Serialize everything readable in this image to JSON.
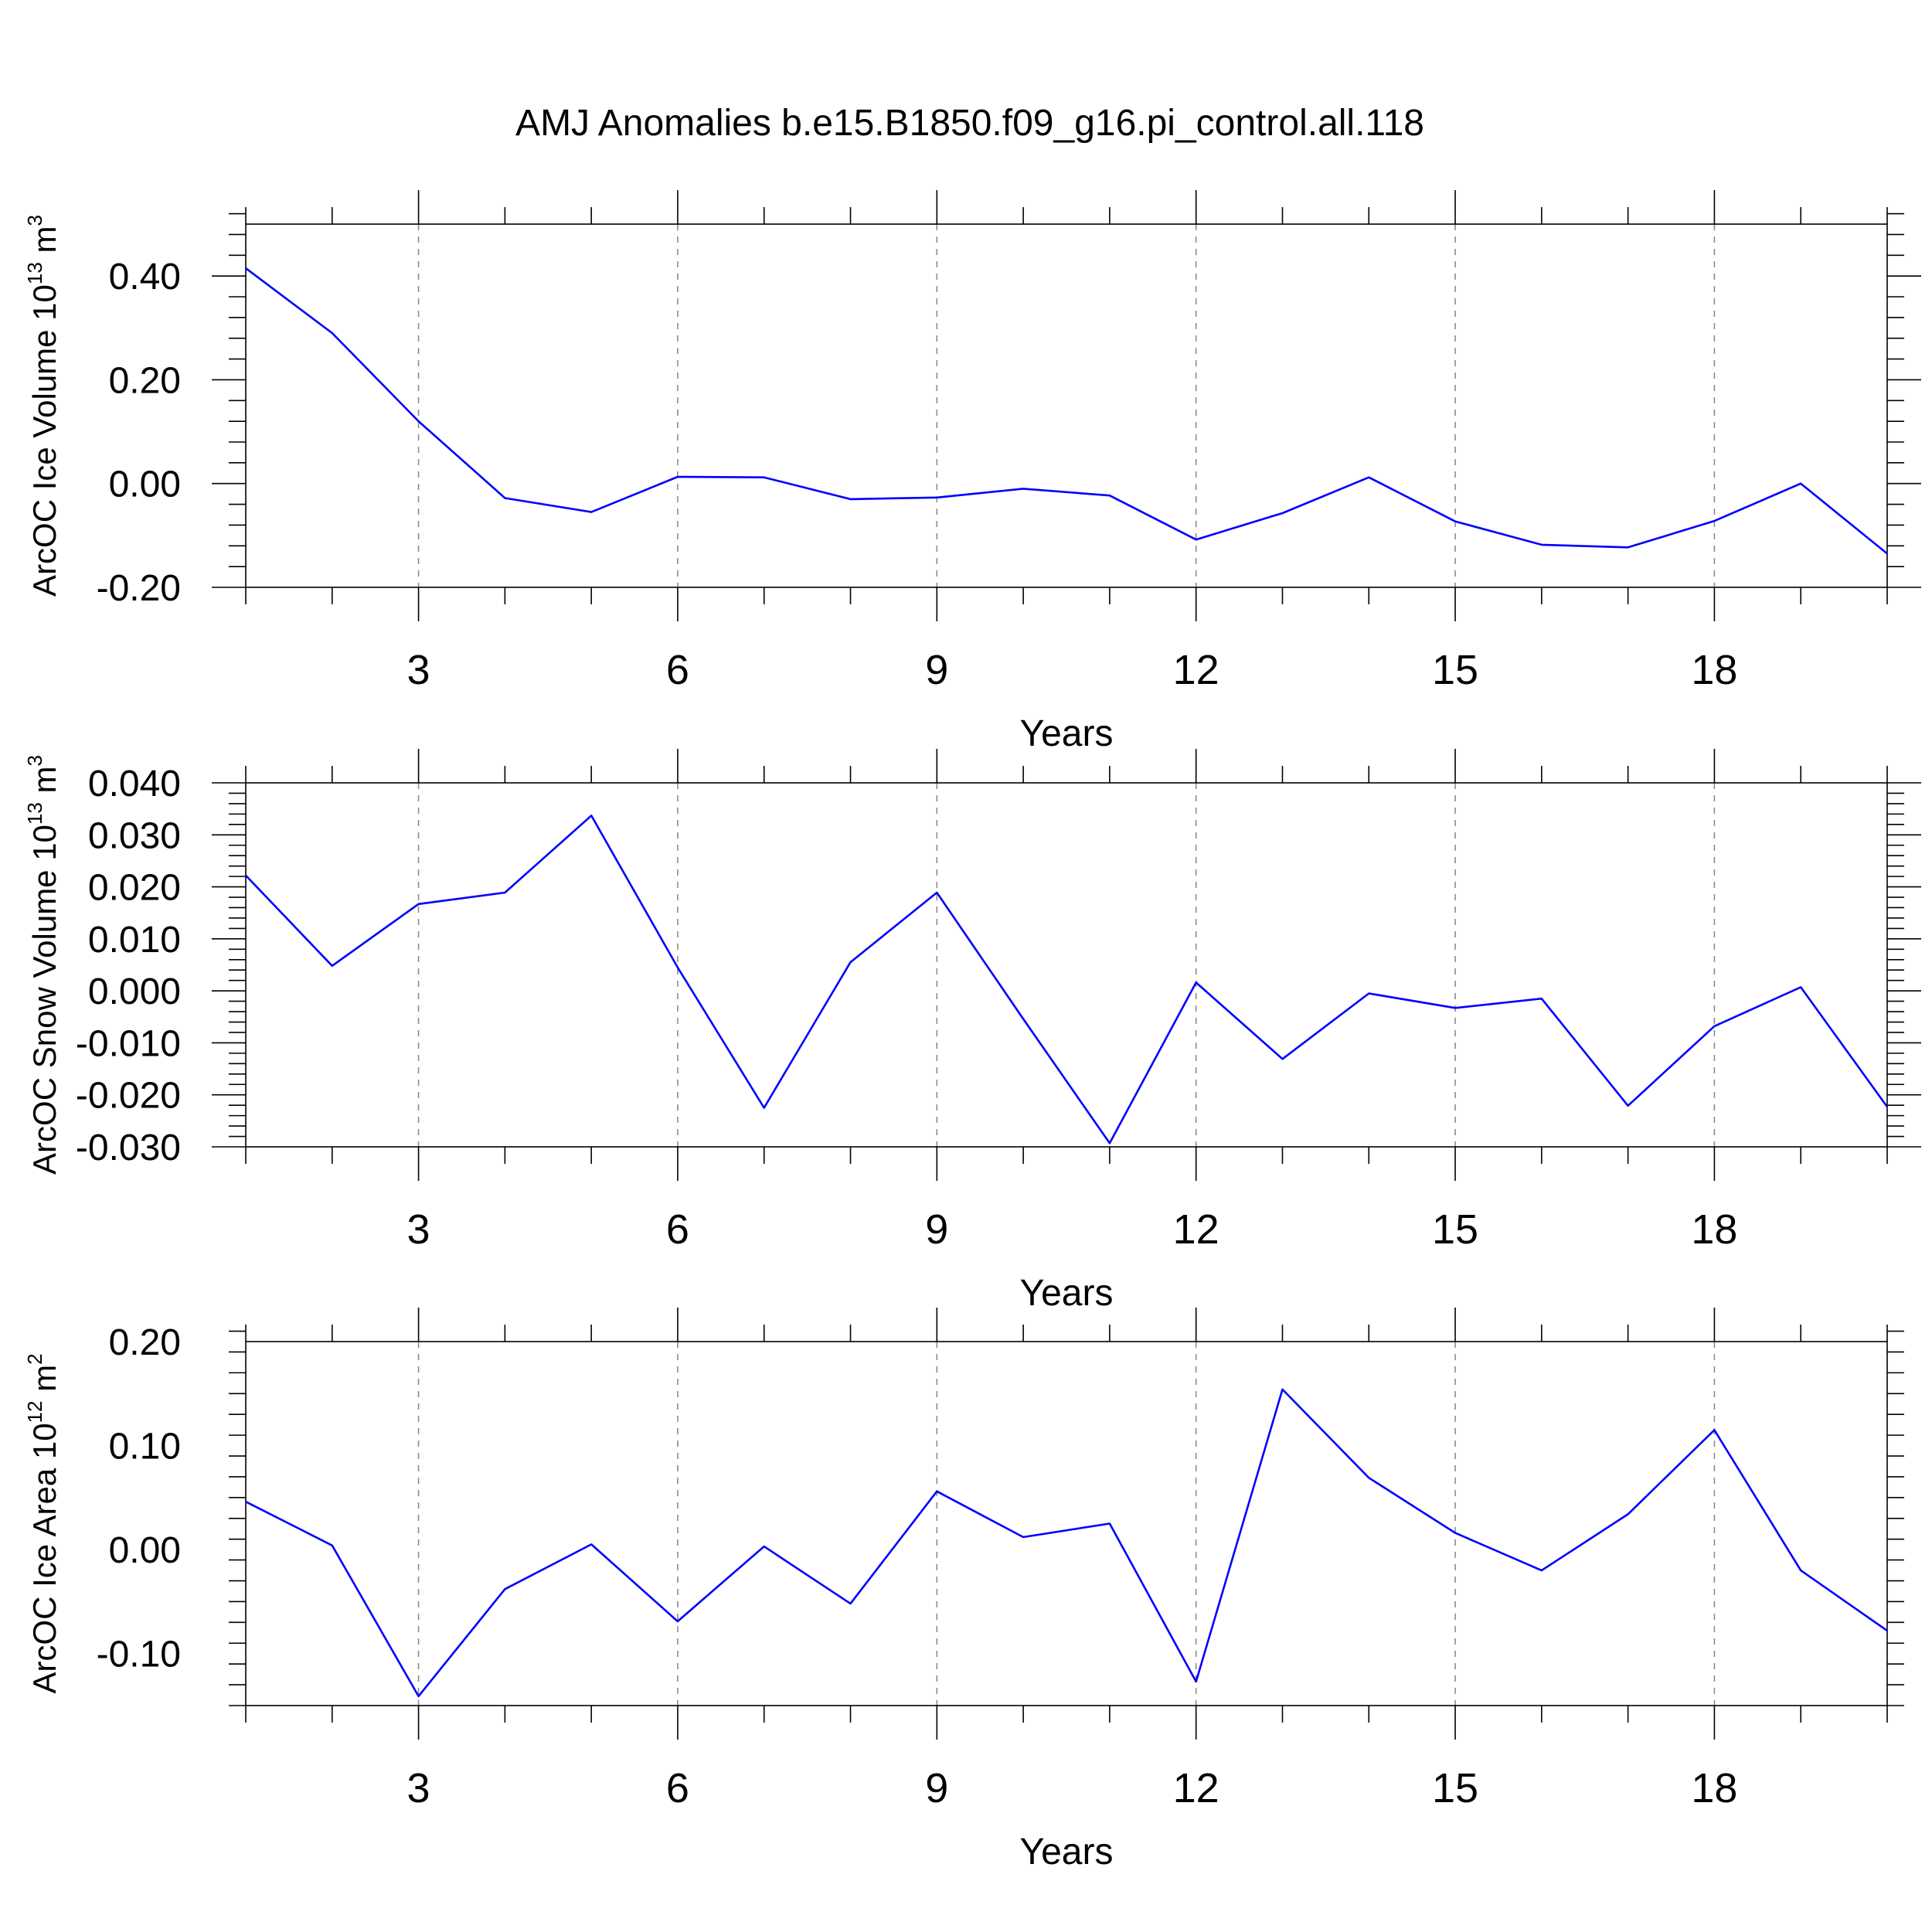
{
  "title": "AMJ Anomalies b.e15.B1850.f09_g16.pi_control.all.118",
  "line_color": "#0000ff",
  "chart_data": [
    {
      "type": "line",
      "xlabel": "Years",
      "ylabel": "ArcOC Ice Volume 10",
      "ylabel_exp": "13",
      "ylabel_unit": " m",
      "ylabel_unit_exp": "3",
      "xlim": [
        1,
        20
      ],
      "ylim": [
        -0.2,
        0.5
      ],
      "yticks": [
        -0.2,
        0.0,
        0.2,
        0.4
      ],
      "ytick_labels": [
        "-0.20",
        "0.00",
        "0.20",
        "0.40"
      ],
      "xticks": [
        3,
        6,
        9,
        12,
        15,
        18
      ],
      "xtick_labels": [
        "3",
        "6",
        "9",
        "12",
        "15",
        "18"
      ],
      "grid": "dashed vertical at major x ticks",
      "x": [
        1,
        2,
        3,
        4,
        5,
        6,
        7,
        8,
        9,
        10,
        11,
        12,
        13,
        14,
        15,
        16,
        17,
        18,
        19,
        20
      ],
      "values": [
        0.415,
        0.29,
        0.12,
        -0.028,
        -0.055,
        0.013,
        0.012,
        -0.03,
        -0.027,
        -0.01,
        -0.023,
        -0.108,
        -0.057,
        0.012,
        -0.073,
        -0.118,
        -0.123,
        -0.072,
        0.0,
        -0.135
      ]
    },
    {
      "type": "line",
      "xlabel": "Years",
      "ylabel": "ArcOC Snow Volume 10",
      "ylabel_exp": "13",
      "ylabel_unit": " m",
      "ylabel_unit_exp": "3",
      "xlim": [
        1,
        20
      ],
      "ylim": [
        -0.03,
        0.04
      ],
      "yticks": [
        -0.03,
        -0.02,
        -0.01,
        0.0,
        0.01,
        0.02,
        0.03,
        0.04
      ],
      "ytick_labels": [
        "-0.030",
        "-0.020",
        "-0.010",
        "0.000",
        "0.010",
        "0.020",
        "0.030",
        "0.040"
      ],
      "xticks": [
        3,
        6,
        9,
        12,
        15,
        18
      ],
      "xtick_labels": [
        "3",
        "6",
        "9",
        "12",
        "15",
        "18"
      ],
      "grid": "dashed vertical at major x ticks",
      "x": [
        1,
        2,
        3,
        4,
        5,
        6,
        7,
        8,
        9,
        10,
        11,
        12,
        13,
        14,
        15,
        16,
        17,
        18,
        19,
        20
      ],
      "values": [
        0.0222,
        0.0048,
        0.0167,
        0.0189,
        0.0337,
        0.0045,
        -0.0225,
        0.0055,
        0.0189,
        -0.0054,
        -0.0293,
        0.0016,
        -0.0131,
        -0.0005,
        -0.0033,
        -0.0015,
        -0.0221,
        -0.0068,
        0.0007,
        -0.0223
      ]
    },
    {
      "type": "line",
      "xlabel": "Years",
      "ylabel": "ArcOC Ice Area 10",
      "ylabel_exp": "12",
      "ylabel_unit": " m",
      "ylabel_unit_exp": "2",
      "xlim": [
        1,
        20
      ],
      "ylim": [
        -0.15,
        0.2
      ],
      "yticks": [
        -0.1,
        0.0,
        0.1,
        0.2
      ],
      "ytick_labels": [
        "-0.10",
        "0.00",
        "0.10",
        "0.20"
      ],
      "xticks": [
        3,
        6,
        9,
        12,
        15,
        18
      ],
      "xtick_labels": [
        "3",
        "6",
        "9",
        "12",
        "15",
        "18"
      ],
      "grid": "dashed vertical at major x ticks",
      "x": [
        1,
        2,
        3,
        4,
        5,
        6,
        7,
        8,
        9,
        10,
        11,
        12,
        13,
        14,
        15,
        16,
        17,
        18,
        19,
        20
      ],
      "values": [
        0.046,
        0.004,
        -0.141,
        -0.038,
        0.005,
        -0.069,
        0.003,
        -0.052,
        0.056,
        0.012,
        0.025,
        -0.127,
        0.154,
        0.069,
        0.016,
        -0.02,
        0.034,
        0.115,
        -0.02,
        -0.078
      ]
    }
  ]
}
